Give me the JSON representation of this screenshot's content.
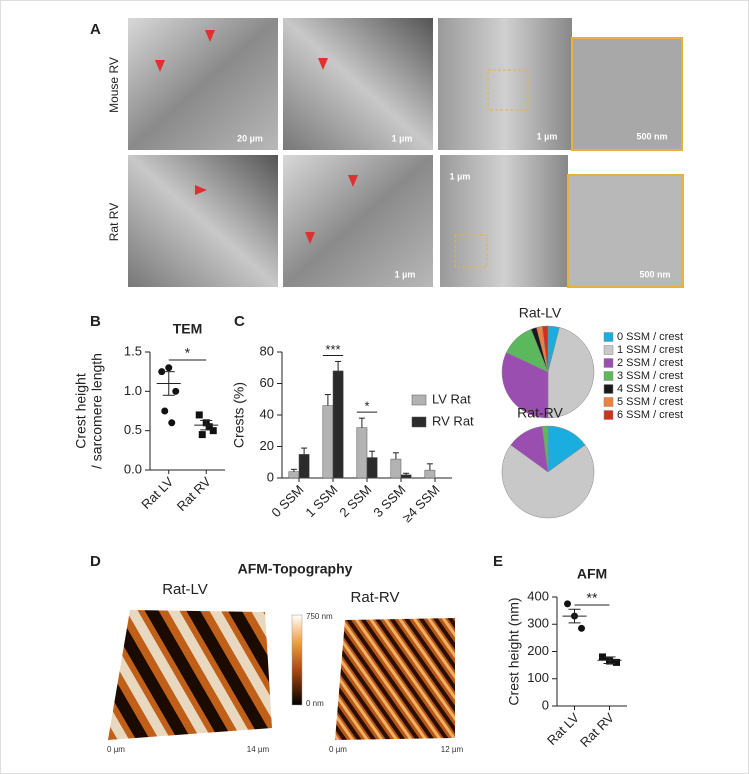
{
  "figure": {
    "panels": [
      "A",
      "B",
      "C",
      "D",
      "E"
    ],
    "row_labels": [
      "Mouse RV",
      "Rat RV"
    ],
    "scale_bars": [
      "20 µm",
      "1 µm",
      "1 µm",
      "500 nm",
      "1 µm",
      "1 µm",
      "500 nm"
    ],
    "afm_title": "AFM-Topography",
    "afm_labels": [
      "Rat-LV",
      "Rat-RV"
    ],
    "colorbar": [
      "750 nm",
      "0 nm"
    ],
    "afm_axes": [
      "0 µm",
      "14 µm",
      "0 µm",
      "12 µm"
    ]
  },
  "chart_data": [
    {
      "type": "dot",
      "title": "TEM",
      "ylabel": [
        "Crest height",
        "/ sarcomere length"
      ],
      "categories": [
        "Rat LV",
        "Rat RV"
      ],
      "points": [
        [
          1.25,
          1.3,
          1.0,
          0.75,
          0.6
        ],
        [
          0.7,
          0.6,
          0.5,
          0.45,
          0.55
        ]
      ],
      "mean": [
        1.1,
        0.57
      ],
      "sem": [
        0.15,
        0.06
      ],
      "ylim": [
        0,
        1.5
      ],
      "yticks": [
        {
          "value": 0,
          "label": "0.0"
        },
        0.5,
        {
          "value": 1,
          "label": "1.0"
        },
        1.5
      ],
      "significance": "*"
    },
    {
      "type": "bar",
      "ylabel": "Crests (%)",
      "categories": [
        "0 SSM",
        "1 SSM",
        "2 SSM",
        "3 SSM",
        "≥4 SSM"
      ],
      "series": [
        {
          "name": "LV Rat",
          "color": "#b3b3b3",
          "values": [
            4,
            46,
            32,
            12,
            5
          ],
          "errors": [
            1.5,
            7,
            6,
            4,
            4
          ]
        },
        {
          "name": "RV Rat",
          "color": "#2b2b2b",
          "values": [
            15,
            68,
            13,
            2,
            0
          ],
          "errors": [
            4,
            6,
            4,
            1,
            0
          ]
        }
      ],
      "ylim": [
        0,
        80
      ],
      "yticks": [
        0,
        20,
        40,
        60,
        80
      ],
      "significance": [
        null,
        "***",
        "*",
        null,
        null
      ]
    },
    {
      "type": "pie",
      "title": "Rat-LV",
      "categories": [
        "0 SSM / crest",
        "1 SSM / crest",
        "2 SSM / crest",
        "3 SSM / crest",
        "4 SSM / crest",
        "5 SSM / crest",
        "6 SSM / crest"
      ],
      "values": [
        4,
        46,
        32,
        12,
        2,
        2,
        2
      ],
      "colors": [
        "#1aaee0",
        "#c8c8c8",
        "#9a4fb0",
        "#5cb85c",
        "#1a1a1a",
        "#f08040",
        "#d03020"
      ]
    },
    {
      "type": "pie",
      "title": "Rat-RV",
      "values": [
        15,
        70,
        13,
        2
      ],
      "colors": [
        "#1aaee0",
        "#c8c8c8",
        "#9a4fb0",
        "#5cb85c"
      ]
    },
    {
      "type": "dot",
      "title": "AFM",
      "ylabel": [
        "Crest height (nm)"
      ],
      "categories": [
        "Rat LV",
        "Rat RV"
      ],
      "points": [
        [
          375,
          330,
          285
        ],
        [
          180,
          165,
          160
        ]
      ],
      "mean": [
        330,
        168
      ],
      "sem": [
        25,
        12
      ],
      "ylim": [
        0,
        400
      ],
      "yticks": [
        0,
        100,
        200,
        300,
        400
      ],
      "significance": "**"
    }
  ]
}
